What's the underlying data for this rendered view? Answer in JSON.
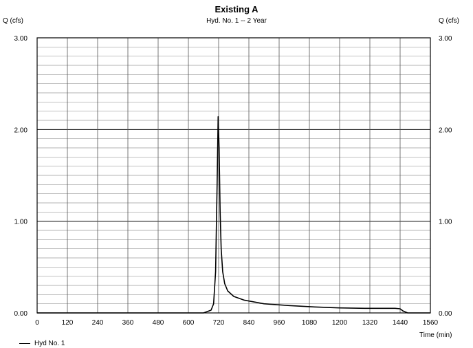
{
  "chart_data": {
    "type": "line",
    "title": "Existing A",
    "subtitle": "Hyd. No. 1 -- 2 Year",
    "ylabel_left": "Q (cfs)",
    "ylabel_right": "Q (cfs)",
    "xlabel": "Time (min)",
    "xlim": [
      0,
      1560
    ],
    "ylim": [
      0,
      3
    ],
    "x_ticks": [
      0,
      120,
      240,
      360,
      480,
      600,
      720,
      840,
      960,
      1080,
      1200,
      1320,
      1440,
      1560
    ],
    "y_ticks": [
      0,
      1,
      2,
      3
    ],
    "y_tick_labels": [
      "0.00",
      "1.00",
      "2.00",
      "3.00"
    ],
    "grid": true,
    "legend_position": "bottom-left",
    "series": [
      {
        "name": "Hyd No. 1",
        "color": "#000000",
        "x": [
          0,
          660,
          690,
          700,
          708,
          714,
          718,
          722,
          726,
          730,
          736,
          744,
          756,
          780,
          820,
          900,
          1000,
          1100,
          1200,
          1300,
          1420,
          1440,
          1452,
          1470,
          1560
        ],
        "y": [
          0,
          0,
          0.03,
          0.1,
          0.45,
          1.4,
          2.14,
          1.8,
          1.1,
          0.7,
          0.45,
          0.32,
          0.24,
          0.18,
          0.14,
          0.1,
          0.08,
          0.065,
          0.055,
          0.05,
          0.05,
          0.045,
          0.02,
          0,
          0
        ]
      }
    ]
  }
}
